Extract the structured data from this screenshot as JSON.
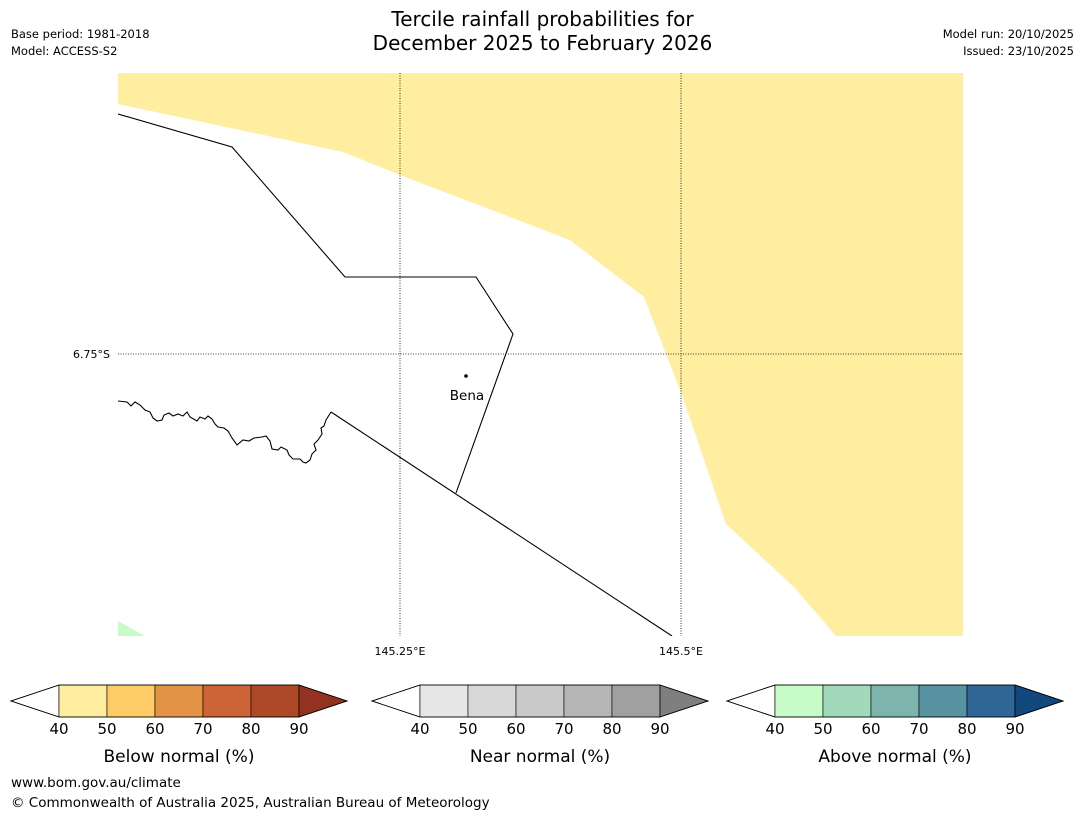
{
  "header": {
    "title_line1": "Tercile rainfall probabilities for",
    "title_line2": "December 2025 to February 2026",
    "base_period": "Base period: 1981-2018",
    "model": "Model: ACCESS-S2",
    "model_run": "Model run: 20/10/2025",
    "issued": "Issued: 23/10/2025"
  },
  "map": {
    "latitude_label": "6.75°S",
    "longitude_labels": [
      "145.25°E",
      "145.5°E"
    ],
    "place_name": "Bena",
    "colors": {
      "below_40_50": "#ffeda0",
      "above_40_50": "#c7fcc8",
      "boundary": "#000000",
      "background": "#ffffff"
    }
  },
  "legends": [
    {
      "name": "Below normal (%)",
      "ticks": [
        "40",
        "50",
        "60",
        "70",
        "80",
        "90"
      ],
      "colors": [
        "#ffeda0",
        "#fecb67",
        "#e29346",
        "#cc6435",
        "#ad4827"
      ],
      "over_color": "#943222"
    },
    {
      "name": "Near normal (%)",
      "ticks": [
        "40",
        "50",
        "60",
        "70",
        "80",
        "90"
      ],
      "colors": [
        "#e6e6e6",
        "#d8d8d8",
        "#c9c9c9",
        "#b5b5b5",
        "#a0a0a0"
      ],
      "over_color": "#7f7f7f"
    },
    {
      "name": "Above normal (%)",
      "ticks": [
        "40",
        "50",
        "60",
        "70",
        "80",
        "90"
      ],
      "colors": [
        "#c7fcc8",
        "#a3d9bb",
        "#7db4ae",
        "#5892a0",
        "#2f6597"
      ],
      "over_color": "#11487e"
    }
  ],
  "footer": {
    "url": "www.bom.gov.au/climate",
    "copyright": "© Commonwealth of Australia 2025, Australian Bureau of Meteorology"
  }
}
